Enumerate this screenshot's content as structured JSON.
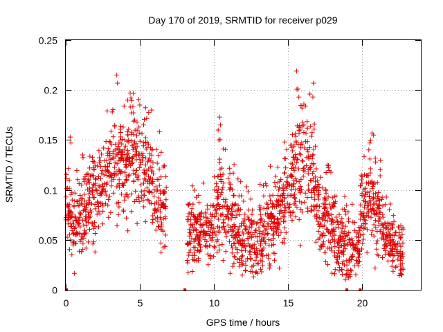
{
  "chart_data": {
    "type": "scatter",
    "title": "Day 170 of 2019, SRMTID for receiver p029",
    "xlabel": "GPS time / hours",
    "ylabel": "SRMTID / TECUs",
    "xlim": [
      0,
      24.0
    ],
    "ylim": [
      0,
      0.25
    ],
    "x_ticks": [
      0,
      5,
      10,
      15,
      20
    ],
    "x_tick_labels": [
      "0",
      "5",
      "10",
      "15",
      "20"
    ],
    "y_ticks": [
      0,
      0.05,
      0.1,
      0.15,
      0.2,
      0.25
    ],
    "y_tick_labels": [
      "0",
      "0.05",
      "0.1",
      "0.15",
      "0.2",
      "0.25"
    ],
    "grid": true,
    "marker": "+",
    "color": "#e00000",
    "series": [
      {
        "name": "SRMTID",
        "segments": [
          {
            "x_start": 0.0,
            "x_end": 1.1,
            "y_trend": [
              0.08,
              0.065,
              0.06,
              0.07
            ],
            "spread": 0.025
          },
          {
            "x_start": 1.1,
            "x_end": 2.8,
            "y_trend": [
              0.07,
              0.09,
              0.1,
              0.11
            ],
            "spread": 0.03
          },
          {
            "x_start": 2.8,
            "x_end": 4.0,
            "y_trend": [
              0.11,
              0.13,
              0.12,
              0.13
            ],
            "spread": 0.035
          },
          {
            "x_start": 4.0,
            "x_end": 5.6,
            "y_trend": [
              0.13,
              0.135,
              0.12,
              0.13
            ],
            "spread": 0.035
          },
          {
            "x_start": 5.6,
            "x_end": 6.8,
            "y_trend": [
              0.12,
              0.1,
              0.09,
              0.075
            ],
            "spread": 0.03
          },
          {
            "x_start": 8.2,
            "x_end": 10.0,
            "y_trend": [
              0.06,
              0.055,
              0.06,
              0.06
            ],
            "spread": 0.022
          },
          {
            "x_start": 10.0,
            "x_end": 11.4,
            "y_trend": [
              0.075,
              0.09,
              0.08,
              0.065
            ],
            "spread": 0.03
          },
          {
            "x_start": 11.4,
            "x_end": 13.5,
            "y_trend": [
              0.06,
              0.055,
              0.05,
              0.055
            ],
            "spread": 0.025
          },
          {
            "x_start": 13.5,
            "x_end": 15.2,
            "y_trend": [
              0.06,
              0.065,
              0.08,
              0.095
            ],
            "spread": 0.028
          },
          {
            "x_start": 15.2,
            "x_end": 16.8,
            "y_trend": [
              0.11,
              0.13,
              0.12,
              0.1
            ],
            "spread": 0.035
          },
          {
            "x_start": 16.8,
            "x_end": 18.4,
            "y_trend": [
              0.09,
              0.075,
              0.065,
              0.055
            ],
            "spread": 0.028
          },
          {
            "x_start": 18.4,
            "x_end": 19.9,
            "y_trend": [
              0.05,
              0.045,
              0.04,
              0.035
            ],
            "spread": 0.022
          },
          {
            "x_start": 19.9,
            "x_end": 21.4,
            "y_trend": [
              0.07,
              0.095,
              0.085,
              0.07
            ],
            "spread": 0.03
          },
          {
            "x_start": 21.4,
            "x_end": 22.8,
            "y_trend": [
              0.06,
              0.05,
              0.04,
              0.035
            ],
            "spread": 0.018
          }
        ],
        "outliers": [
          {
            "x": 3.45,
            "y": 0.215
          },
          {
            "x": 3.5,
            "y": 0.207
          },
          {
            "x": 4.35,
            "y": 0.197
          },
          {
            "x": 4.4,
            "y": 0.192
          },
          {
            "x": 5.0,
            "y": 0.185
          },
          {
            "x": 5.8,
            "y": 0.18
          },
          {
            "x": 0.3,
            "y": 0.153
          },
          {
            "x": 0.35,
            "y": 0.147
          },
          {
            "x": 10.4,
            "y": 0.173
          },
          {
            "x": 10.45,
            "y": 0.165
          },
          {
            "x": 10.3,
            "y": 0.16
          },
          {
            "x": 10.35,
            "y": 0.15
          },
          {
            "x": 15.6,
            "y": 0.219
          },
          {
            "x": 15.7,
            "y": 0.201
          },
          {
            "x": 15.75,
            "y": 0.193
          },
          {
            "x": 16.2,
            "y": 0.184
          },
          {
            "x": 16.5,
            "y": 0.196
          },
          {
            "x": 16.75,
            "y": 0.207
          },
          {
            "x": 16.7,
            "y": 0.193
          },
          {
            "x": 16.8,
            "y": 0.166
          },
          {
            "x": 14.8,
            "y": 0.148
          },
          {
            "x": 20.7,
            "y": 0.157
          },
          {
            "x": 20.8,
            "y": 0.155
          },
          {
            "x": 20.55,
            "y": 0.147
          },
          {
            "x": 18.9,
            "y": 0.01
          },
          {
            "x": 19.1,
            "y": 0.012
          },
          {
            "x": 19.6,
            "y": 0.015
          }
        ],
        "zero_points": [
          {
            "x": 0.05,
            "y": 0.0
          },
          {
            "x": 8.05,
            "y": 0.0
          },
          {
            "x": 19.0,
            "y": 0.0
          },
          {
            "x": 19.9,
            "y": 0.0
          }
        ]
      }
    ]
  }
}
